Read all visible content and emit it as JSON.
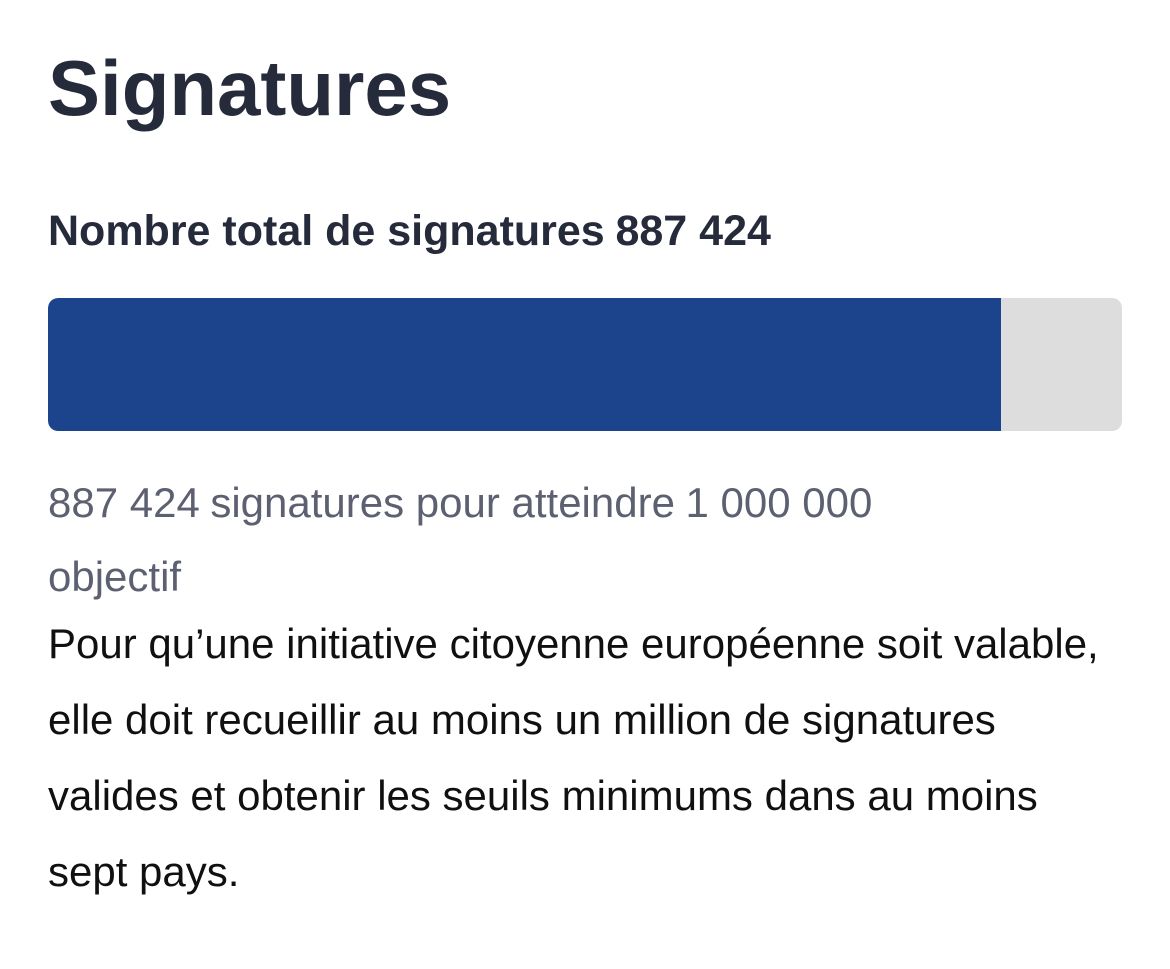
{
  "title": "Signatures",
  "total": {
    "label": "Nombre total de signatures",
    "value": "887 424"
  },
  "progress": {
    "current": 887424,
    "goal": 1000000,
    "fill_color": "#1c448d",
    "track_color": "#dddddd"
  },
  "goal_text": {
    "count": "887 424",
    "middle": "signatures pour atteindre",
    "goal_value": "1 000 000",
    "suffix": "objectif"
  },
  "info_text": "Pour qu’une initiative citoyenne européenne soit valable, elle doit recueillir au moins un million de signatures valides et obtenir les seuils minimums dans au moins sept pays."
}
